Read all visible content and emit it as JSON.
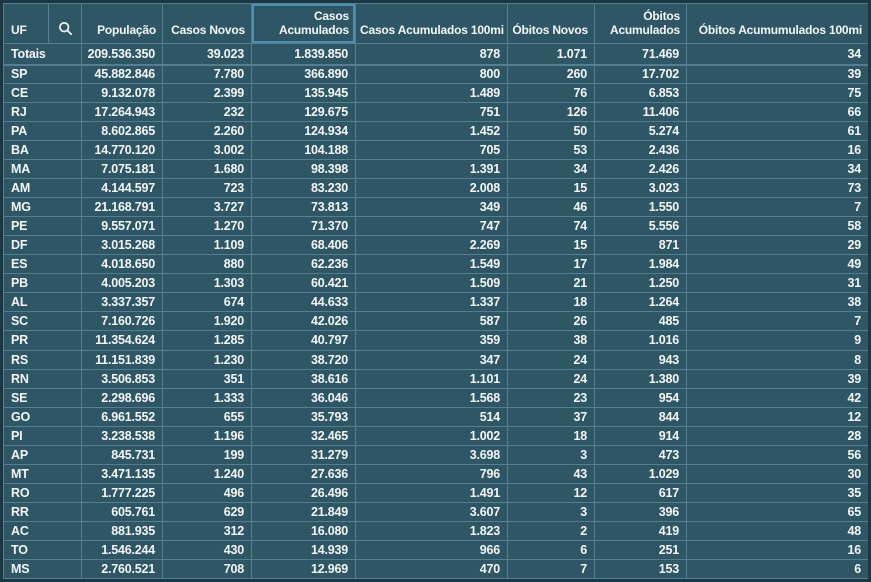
{
  "table": {
    "columns": [
      {
        "key": "uf",
        "label": "UF"
      },
      {
        "key": "search",
        "label": "",
        "icon": "search-icon"
      },
      {
        "key": "populacao",
        "label": "População"
      },
      {
        "key": "casos-novos",
        "label": "Casos Novos"
      },
      {
        "key": "casos-acumulados",
        "label": "Casos Acumulados",
        "sorted": "desc"
      },
      {
        "key": "casos-acumulados-100mi",
        "label": "Casos Acumulados 100mi"
      },
      {
        "key": "obitos-novos",
        "label": "Óbitos Novos"
      },
      {
        "key": "obitos-acumulados",
        "label": "Óbitos Acumulados"
      },
      {
        "key": "obitos-acumumulados-100mi",
        "label": "Óbitos Acumumulados 100mi"
      }
    ],
    "rows": [
      {
        "uf": "Totais",
        "values": [
          "209.536.350",
          "39.023",
          "1.839.850",
          "878",
          "1.071",
          "71.469",
          "34"
        ]
      },
      {
        "uf": "SP",
        "values": [
          "45.882.846",
          "7.780",
          "366.890",
          "800",
          "260",
          "17.702",
          "39"
        ]
      },
      {
        "uf": "CE",
        "values": [
          "9.132.078",
          "2.399",
          "135.945",
          "1.489",
          "76",
          "6.853",
          "75"
        ]
      },
      {
        "uf": "RJ",
        "values": [
          "17.264.943",
          "232",
          "129.675",
          "751",
          "126",
          "11.406",
          "66"
        ]
      },
      {
        "uf": "PA",
        "values": [
          "8.602.865",
          "2.260",
          "124.934",
          "1.452",
          "50",
          "5.274",
          "61"
        ]
      },
      {
        "uf": "BA",
        "values": [
          "14.770.120",
          "3.002",
          "104.188",
          "705",
          "53",
          "2.436",
          "16"
        ]
      },
      {
        "uf": "MA",
        "values": [
          "7.075.181",
          "1.680",
          "98.398",
          "1.391",
          "34",
          "2.426",
          "34"
        ]
      },
      {
        "uf": "AM",
        "values": [
          "4.144.597",
          "723",
          "83.230",
          "2.008",
          "15",
          "3.023",
          "73"
        ]
      },
      {
        "uf": "MG",
        "values": [
          "21.168.791",
          "3.727",
          "73.813",
          "349",
          "46",
          "1.550",
          "7"
        ]
      },
      {
        "uf": "PE",
        "values": [
          "9.557.071",
          "1.270",
          "71.370",
          "747",
          "74",
          "5.556",
          "58"
        ]
      },
      {
        "uf": "DF",
        "values": [
          "3.015.268",
          "1.109",
          "68.406",
          "2.269",
          "15",
          "871",
          "29"
        ]
      },
      {
        "uf": "ES",
        "values": [
          "4.018.650",
          "880",
          "62.236",
          "1.549",
          "17",
          "1.984",
          "49"
        ]
      },
      {
        "uf": "PB",
        "values": [
          "4.005.203",
          "1.303",
          "60.421",
          "1.509",
          "21",
          "1.250",
          "31"
        ]
      },
      {
        "uf": "AL",
        "values": [
          "3.337.357",
          "674",
          "44.633",
          "1.337",
          "18",
          "1.264",
          "38"
        ]
      },
      {
        "uf": "SC",
        "values": [
          "7.160.726",
          "1.920",
          "42.026",
          "587",
          "26",
          "485",
          "7"
        ]
      },
      {
        "uf": "PR",
        "values": [
          "11.354.624",
          "1.285",
          "40.797",
          "359",
          "38",
          "1.016",
          "9"
        ]
      },
      {
        "uf": "RS",
        "values": [
          "11.151.839",
          "1.230",
          "38.720",
          "347",
          "24",
          "943",
          "8"
        ]
      },
      {
        "uf": "RN",
        "values": [
          "3.506.853",
          "351",
          "38.616",
          "1.101",
          "24",
          "1.380",
          "39"
        ]
      },
      {
        "uf": "SE",
        "values": [
          "2.298.696",
          "1.333",
          "36.046",
          "1.568",
          "23",
          "954",
          "42"
        ]
      },
      {
        "uf": "GO",
        "values": [
          "6.961.552",
          "655",
          "35.793",
          "514",
          "37",
          "844",
          "12"
        ]
      },
      {
        "uf": "PI",
        "values": [
          "3.238.538",
          "1.196",
          "32.465",
          "1.002",
          "18",
          "914",
          "28"
        ]
      },
      {
        "uf": "AP",
        "values": [
          "845.731",
          "199",
          "31.279",
          "3.698",
          "3",
          "473",
          "56"
        ]
      },
      {
        "uf": "MT",
        "values": [
          "3.471.135",
          "1.240",
          "27.636",
          "796",
          "43",
          "1.029",
          "30"
        ]
      },
      {
        "uf": "RO",
        "values": [
          "1.777.225",
          "496",
          "26.496",
          "1.491",
          "12",
          "617",
          "35"
        ]
      },
      {
        "uf": "RR",
        "values": [
          "605.761",
          "629",
          "21.849",
          "3.607",
          "3",
          "396",
          "65"
        ]
      },
      {
        "uf": "AC",
        "values": [
          "881.935",
          "312",
          "16.080",
          "1.823",
          "2",
          "419",
          "48"
        ]
      },
      {
        "uf": "TO",
        "values": [
          "1.546.244",
          "430",
          "14.939",
          "966",
          "6",
          "251",
          "16"
        ]
      },
      {
        "uf": "MS",
        "values": [
          "2.760.521",
          "708",
          "12.969",
          "470",
          "7",
          "153",
          "6"
        ]
      }
    ],
    "colors": {
      "background": "#2F5664",
      "gridline": "#557E91",
      "text": "#F2F6F7",
      "outer_border": "#1B3743",
      "sorted_column_border": "#4D8FB3",
      "sort_arrow": "#95A0A5"
    },
    "sort": {
      "column": "casos-acumulados",
      "direction": "desc"
    }
  }
}
